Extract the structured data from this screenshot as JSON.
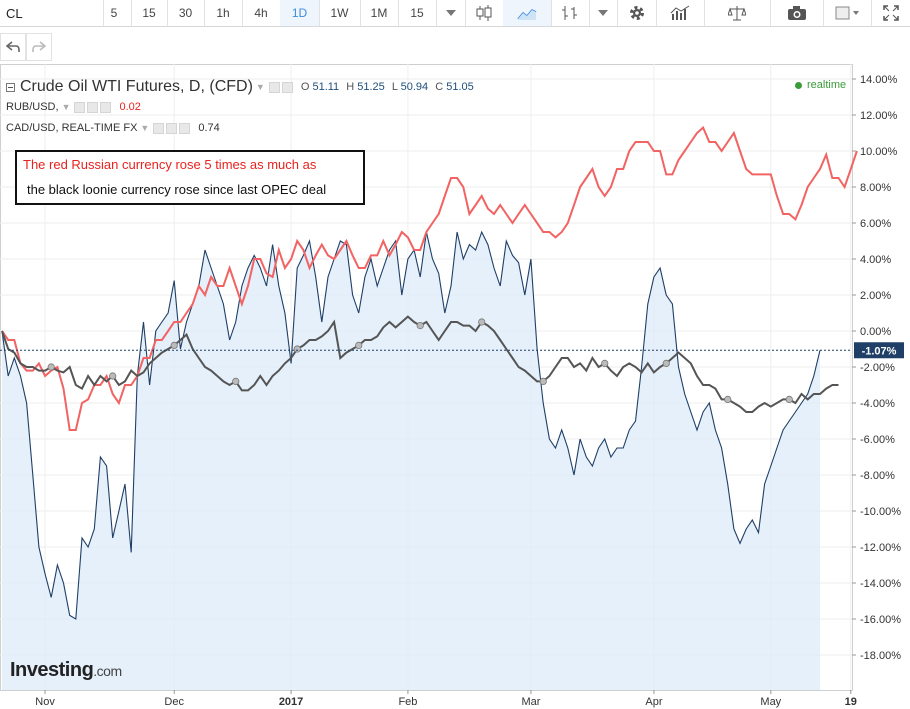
{
  "toolbar": {
    "symbol": "CL",
    "intervals": [
      "5",
      "15",
      "30",
      "1h",
      "4h",
      "1D",
      "1W",
      "1M"
    ],
    "active_interval": "1D",
    "bar_count": "15"
  },
  "legend": {
    "main": {
      "title": "Crude Oil WTI Futures, D, (CFD)",
      "o_label": "O",
      "o_value": "51.11",
      "h_label": "H",
      "h_value": "51.25",
      "l_label": "L",
      "l_value": "50.94",
      "c_label": "C",
      "c_value": "51.05"
    },
    "rub": {
      "name": "RUB/USD,",
      "value": "0.02"
    },
    "cad": {
      "name": "CAD/USD, REAL-TIME FX",
      "value": "0.74"
    },
    "realtime": "realtime"
  },
  "annotation": {
    "line1": "The red Russian currency rose 5 times as much as",
    "line2": "the black loonie currency rose since last OPEC deal"
  },
  "watermark": {
    "brand": "Investing",
    "suffix": ".com"
  },
  "colors": {
    "crude_line": "#1f3f66",
    "crude_fill": "#dcebf8",
    "rub_line": "#f26363",
    "cad_line": "#555555",
    "price_label_bg": "#1f3f66"
  },
  "chart_data": {
    "type": "line",
    "title": "Crude Oil WTI Futures, D, (CFD)",
    "yunit": "%",
    "ylim": [
      -20,
      14
    ],
    "yticks": [
      "14.00%",
      "12.00%",
      "10.00%",
      "8.00%",
      "6.00%",
      "4.00%",
      "2.00%",
      "0.00%",
      "-2.00%",
      "-4.00%",
      "-6.00%",
      "-8.00%",
      "-10.00%",
      "-12.00%",
      "-14.00%",
      "-16.00%",
      "-18.00%"
    ],
    "xticks": [
      "Nov",
      "Dec",
      "2017",
      "Feb",
      "Mar",
      "Apr",
      "May",
      "19"
    ],
    "xtick_index": [
      7,
      28,
      47,
      66,
      86,
      106,
      125,
      138
    ],
    "last_value_label": "-1.07%",
    "grid": true,
    "series": [
      {
        "name": "Crude Oil WTI Futures, D, (CFD)",
        "values": [
          0,
          -2.5,
          -1.5,
          -2.5,
          -4,
          -8,
          -12,
          -13.5,
          -14.8,
          -13,
          -14,
          -15.8,
          -16,
          -11.5,
          -12,
          -11,
          -7,
          -7.5,
          -11.5,
          -10,
          -8.5,
          -12.3,
          -2.5,
          0.5,
          -3,
          0,
          0.5,
          1,
          2.8,
          -1,
          0.5,
          1.5,
          2.5,
          4.5,
          3.5,
          2.5,
          1.5,
          -0.5,
          0.5,
          2.5,
          3.5,
          4.2,
          3.5,
          2.5,
          4.8,
          2.5,
          1,
          -1.8,
          3.5,
          4.2,
          5,
          3,
          0.5,
          3,
          4,
          5,
          4.8,
          2,
          1,
          3,
          4,
          2.5,
          3.5,
          4.5,
          5,
          2,
          4,
          4.5,
          3,
          5.5,
          4,
          3.2,
          1,
          2.5,
          5.5,
          4,
          4.8,
          4.5,
          5.5,
          4.8,
          3.5,
          2.5,
          5,
          4.2,
          3.8,
          2,
          4,
          -1,
          -4,
          -6,
          -6.5,
          -5.5,
          -6.5,
          -8,
          -6,
          -7,
          -7.5,
          -6.5,
          -6,
          -7,
          -6.5,
          -6.5,
          -5.5,
          -5,
          -2,
          1.5,
          3,
          3.5,
          2,
          1.5,
          -2,
          -3.5,
          -4.5,
          -5.5,
          -4.5,
          -4,
          -5.5,
          -6.5,
          -8.5,
          -11,
          -11.8,
          -11,
          -10.5,
          -11.2,
          -8.5,
          -7.5,
          -6.5,
          -5.5,
          -5,
          -4.5,
          -4,
          -3.5,
          -2.5,
          -1.07
        ],
        "color": "#1f3f66"
      },
      {
        "name": "RUB/USD,",
        "values": [
          0,
          -0.5,
          -0.5,
          -1.8,
          -2.2,
          -2.2,
          -1.8,
          -2.5,
          -2.2,
          -2,
          -3.2,
          -5.5,
          -5.5,
          -4,
          -3.8,
          -3,
          -3,
          -2.5,
          -3.5,
          -4,
          -3,
          -3,
          -2.5,
          -1.5,
          -1.5,
          -0.5,
          -0.5,
          0,
          0.5,
          0.5,
          1,
          1.5,
          2.5,
          2,
          3,
          2.5,
          2.5,
          3.5,
          2.5,
          1.5,
          2.5,
          4,
          4,
          3.2,
          3,
          4.5,
          3.5,
          4,
          5,
          4.5,
          3.5,
          4.2,
          4.8,
          4.2,
          4,
          4.5,
          5,
          4.2,
          3.5,
          3.5,
          4.2,
          4.2,
          5,
          4.2,
          4.8,
          5.5,
          5.2,
          4.5,
          4.5,
          5.5,
          6,
          6.5,
          7.5,
          8.5,
          8.5,
          8,
          6.5,
          7,
          7.5,
          6.8,
          6.5,
          7,
          6.5,
          6,
          6.5,
          7,
          6.5,
          6,
          5.5,
          5.5,
          5.2,
          5.5,
          6,
          7,
          8,
          8.5,
          9,
          8,
          7.5,
          8,
          9,
          9,
          10,
          10.5,
          10.5,
          10.5,
          10,
          10,
          8.7,
          8.7,
          9.5,
          10,
          10.5,
          11,
          11.3,
          10.5,
          10.5,
          10,
          10.5,
          11,
          10,
          9,
          8.7,
          8.7,
          8.7,
          8.7,
          7.5,
          6.5,
          6.5,
          6.2,
          7,
          8,
          8.5,
          9,
          9.8,
          8.5,
          8.5,
          8,
          9,
          10
        ],
        "color": "#f26363"
      },
      {
        "name": "CAD/USD, REAL-TIME FX",
        "values": [
          0,
          -1,
          -1.2,
          -1.8,
          -2,
          -2,
          -2.2,
          -2.2,
          -2,
          -2.2,
          -2.3,
          -2,
          -3,
          -3.2,
          -2.5,
          -3,
          -2.5,
          -2.8,
          -2.5,
          -3,
          -2.8,
          -2.2,
          -2.5,
          -2.3,
          -1.8,
          -1.5,
          -1.2,
          -1,
          -0.8,
          -0.5,
          -0.2,
          -1,
          -1.5,
          -2,
          -2.2,
          -2.5,
          -2.8,
          -3,
          -2.8,
          -3.3,
          -3.3,
          -3,
          -2.5,
          -3,
          -2.5,
          -2.2,
          -1.8,
          -1.5,
          -1,
          -0.8,
          -0.5,
          -0.5,
          -0.3,
          0,
          0.5,
          -1.5,
          -1.2,
          -1,
          -0.8,
          -0.5,
          -0.5,
          -0.3,
          0.2,
          0.5,
          0.2,
          0.5,
          0.8,
          0.5,
          0.3,
          0.5,
          0,
          -0.5,
          0,
          0.5,
          0.5,
          0.3,
          0.3,
          0,
          0.5,
          0.3,
          0,
          -0.5,
          -1,
          -1.5,
          -2,
          -2.2,
          -2.5,
          -2.8,
          -2.8,
          -2.5,
          -2,
          -1.5,
          -1.5,
          -2,
          -1.8,
          -2.2,
          -1.5,
          -2,
          -1.8,
          -2.2,
          -2.5,
          -2,
          -1.8,
          -2,
          -2.3,
          -1.8,
          -2.3,
          -2,
          -1.8,
          -1.5,
          -1.2,
          -1.5,
          -1.8,
          -2.5,
          -3,
          -3,
          -3.2,
          -3.8,
          -3.8,
          -4,
          -4.2,
          -4.5,
          -4.5,
          -4.2,
          -4,
          -4.2,
          -4,
          -3.8,
          -3.8,
          -4,
          -3.5,
          -3.8,
          -3.5,
          -3.5,
          -3.2,
          -3,
          -3
        ],
        "color": "#555555"
      }
    ]
  }
}
